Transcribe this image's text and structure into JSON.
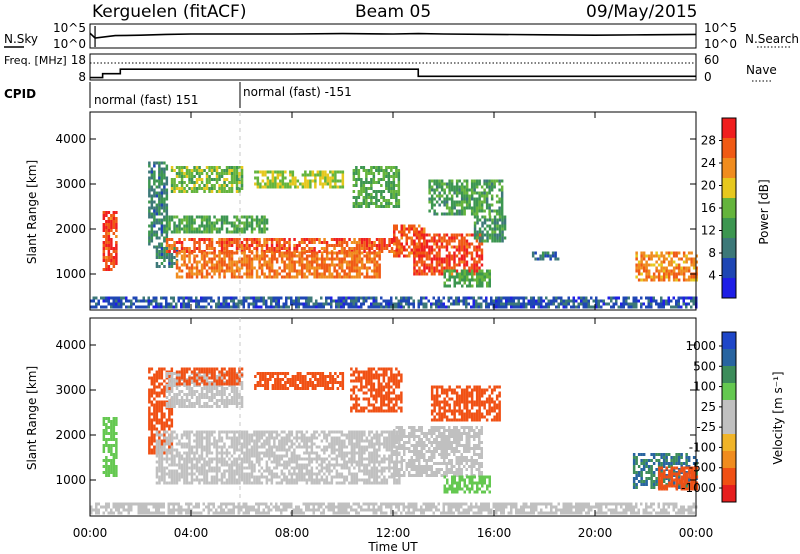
{
  "header": {
    "station": "Kerguelen (fitACF)",
    "beam": "Beam 05",
    "date": "09/May/2015"
  },
  "colors": {
    "sky_line": "#000000",
    "dotted": "#000000",
    "power_scale": [
      "#1e1ee6",
      "#1e46b4",
      "#3c7878",
      "#3c9650",
      "#64b43c",
      "#e6c81e",
      "#f08c1e",
      "#f05a14",
      "#f01e1e"
    ],
    "velocity_scale": [
      "#e61e1e",
      "#f05014",
      "#f08c1e",
      "#f0b428",
      "#c0c0c0",
      "#c0c0c0",
      "#64c850",
      "#3c8c5a",
      "#2864a0",
      "#1e46c8"
    ],
    "ground_scatter": "#c0c0c0"
  },
  "chart_data": [
    {
      "id": "noise",
      "type": "line",
      "ylabel": "N.Sky",
      "ylabel_right": "N.Search",
      "yticks": [
        "10^5",
        "10^0"
      ],
      "yticks_right": [
        "10^5",
        "10^0"
      ],
      "ylim_log10": [
        0,
        5
      ],
      "series": [
        {
          "x": [
            0.0,
            0.2,
            1,
            2,
            3,
            4,
            6,
            8,
            10,
            12,
            13,
            14,
            16,
            18,
            20,
            22,
            24
          ],
          "values_log10": [
            3.2,
            2.0,
            2.6,
            2.7,
            2.9,
            3.0,
            3.0,
            3.0,
            3.1,
            3.0,
            3.1,
            3.0,
            2.9,
            2.8,
            2.7,
            2.8,
            2.9
          ]
        }
      ]
    },
    {
      "id": "freq-nave",
      "type": "line",
      "ylabel": "Freq. [MHz]",
      "ylabel_right": "Nave",
      "yticks": [
        "18",
        "8"
      ],
      "yticks_right": [
        "60",
        "0"
      ],
      "ylim": [
        8,
        18
      ],
      "ylim_right": [
        0,
        60
      ],
      "series": [
        {
          "name": "Freq.",
          "x": [
            0,
            0.5,
            0.5,
            1.2,
            1.2,
            13.0,
            13.0,
            24
          ],
          "values": [
            8.6,
            8.6,
            10.2,
            10.2,
            12.1,
            12.1,
            9.1,
            9.1
          ]
        },
        {
          "name": "Nave",
          "x": [
            0,
            24
          ],
          "values": [
            40,
            40
          ]
        }
      ]
    },
    {
      "id": "cpid",
      "type": "table",
      "label": "CPID",
      "entries": [
        {
          "start_hour": 0,
          "text": "normal (fast) 151"
        },
        {
          "start_hour": 6,
          "text": "normal (fast) -151"
        }
      ]
    },
    {
      "id": "power",
      "type": "heatmap",
      "ylabel": "Slant Range [km]",
      "yticks": [
        1000,
        2000,
        3000,
        4000
      ],
      "ylim": [
        200,
        4600
      ],
      "xlim": [
        0,
        24
      ],
      "colorbar_label": "Power [dB]",
      "colorbar_ticks": [
        4,
        8,
        12,
        16,
        20,
        24,
        28
      ],
      "colorbar_range": [
        0,
        32
      ],
      "regions": [
        {
          "t0": 0.5,
          "t1": 1.0,
          "r0": 1100,
          "r1": 2400,
          "value": 28
        },
        {
          "t0": 2.3,
          "t1": 3.0,
          "r0": 1600,
          "r1": 3500,
          "value": 10
        },
        {
          "t0": 2.6,
          "t1": 3.4,
          "r0": 1150,
          "r1": 1600,
          "value": 9
        },
        {
          "t0": 3.0,
          "t1": 12.3,
          "r0": 1500,
          "r1": 1800,
          "value": 27
        },
        {
          "t0": 3.4,
          "t1": 11.5,
          "r0": 900,
          "r1": 1500,
          "value": 25
        },
        {
          "t0": 3.0,
          "t1": 7.0,
          "r0": 1900,
          "r1": 2300,
          "value": 14
        },
        {
          "t0": 3.2,
          "t1": 6.0,
          "r0": 2800,
          "r1": 3400,
          "value": 16
        },
        {
          "t0": 6.5,
          "t1": 10.0,
          "r0": 2900,
          "r1": 3300,
          "value": 18
        },
        {
          "t0": 10.4,
          "t1": 12.2,
          "r0": 2500,
          "r1": 3400,
          "value": 14
        },
        {
          "t0": 12.0,
          "t1": 13.2,
          "r0": 1400,
          "r1": 2100,
          "value": 27
        },
        {
          "t0": 12.8,
          "t1": 15.5,
          "r0": 1000,
          "r1": 1900,
          "value": 28
        },
        {
          "t0": 13.4,
          "t1": 16.3,
          "r0": 2300,
          "r1": 3100,
          "value": 13
        },
        {
          "t0": 15.2,
          "t1": 16.4,
          "r0": 1700,
          "r1": 2300,
          "value": 12
        },
        {
          "t0": 14.0,
          "t1": 15.8,
          "r0": 700,
          "r1": 1100,
          "value": 14
        },
        {
          "t0": 21.6,
          "t1": 24.0,
          "r0": 850,
          "r1": 1500,
          "value": 24
        },
        {
          "t0": 0.0,
          "t1": 24.0,
          "r0": 250,
          "r1": 500,
          "value": 6
        },
        {
          "t0": 17.5,
          "t1": 18.5,
          "r0": 1300,
          "r1": 1500,
          "value": 8
        }
      ]
    },
    {
      "id": "velocity",
      "type": "heatmap",
      "ylabel": "Slant Range [km]",
      "yticks": [
        1000,
        2000,
        3000,
        4000
      ],
      "ylim": [
        200,
        4600
      ],
      "xlim": [
        0,
        24
      ],
      "xlabel": "Time UT",
      "xticks": [
        "00:00",
        "04:00",
        "08:00",
        "12:00",
        "16:00",
        "20:00",
        "00:00"
      ],
      "colorbar_label": "Velocity [m s⁻¹]",
      "colorbar_ticks": [
        "1000",
        "500",
        "100",
        "25",
        "-25",
        "-100",
        "-500",
        "-1000"
      ],
      "regions": [
        {
          "t0": 0.5,
          "t1": 1.0,
          "r0": 1100,
          "r1": 2400,
          "value": 50
        },
        {
          "t0": 2.3,
          "t1": 3.2,
          "r0": 1600,
          "r1": 3500,
          "value": -100
        },
        {
          "t0": 2.6,
          "t1": 12.3,
          "r0": 900,
          "r1": 2100,
          "value": 0
        },
        {
          "t0": 3.0,
          "t1": 6.0,
          "r0": 2600,
          "r1": 3400,
          "value": 0
        },
        {
          "t0": 3.4,
          "t1": 6.0,
          "r0": 3100,
          "r1": 3500,
          "value": -300
        },
        {
          "t0": 6.5,
          "t1": 10.0,
          "r0": 3000,
          "r1": 3400,
          "value": -200
        },
        {
          "t0": 10.3,
          "t1": 12.3,
          "r0": 2500,
          "r1": 3500,
          "value": -150
        },
        {
          "t0": 12.0,
          "t1": 15.5,
          "r0": 1100,
          "r1": 2200,
          "value": 0
        },
        {
          "t0": 13.5,
          "t1": 16.2,
          "r0": 2300,
          "r1": 3100,
          "value": -150
        },
        {
          "t0": 14.0,
          "t1": 15.8,
          "r0": 700,
          "r1": 1100,
          "value": 70
        },
        {
          "t0": 21.5,
          "t1": 24.0,
          "r0": 800,
          "r1": 1600,
          "value": 400
        },
        {
          "t0": 22.5,
          "t1": 24.0,
          "r0": 800,
          "r1": 1300,
          "value": -200
        },
        {
          "t0": 0.0,
          "t1": 24.0,
          "r0": 250,
          "r1": 500,
          "value": 0
        }
      ]
    }
  ]
}
